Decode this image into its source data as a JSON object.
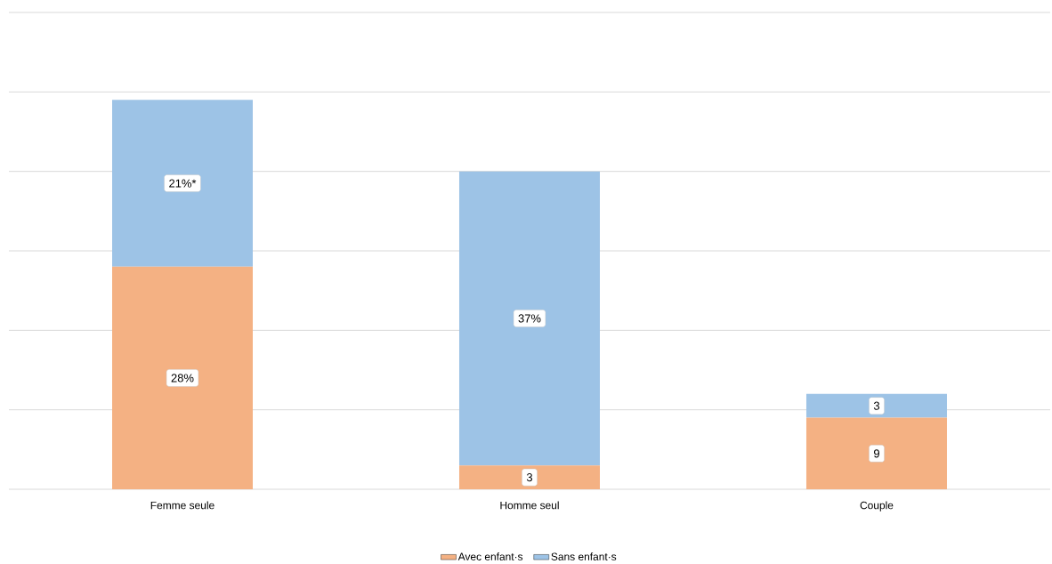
{
  "chart_data": {
    "type": "bar",
    "stacked": true,
    "categories": [
      "Femme seule",
      "Homme seul",
      "Couple"
    ],
    "series": [
      {
        "name": "Avec enfant·s",
        "color": "#f4b183",
        "values": [
          28,
          3,
          9
        ],
        "value_labels": [
          "28%",
          "3",
          "9"
        ]
      },
      {
        "name": "Sans enfant·s",
        "color": "#9dc3e6",
        "values": [
          21,
          37,
          3
        ],
        "value_labels": [
          "21%*",
          "37%",
          "3"
        ]
      }
    ],
    "ylim": [
      0,
      60
    ],
    "yticks": [
      {
        "value": 0,
        "label": null
      },
      {
        "value": 10,
        "label": null
      },
      {
        "value": 20,
        "label": null
      },
      {
        "value": 30,
        "label": null
      },
      {
        "value": 40,
        "label": null
      },
      {
        "value": 50,
        "label": null
      },
      {
        "value": 60,
        "label": null
      }
    ],
    "tick_labels": "x",
    "grid": "y",
    "legend": "bottom"
  }
}
